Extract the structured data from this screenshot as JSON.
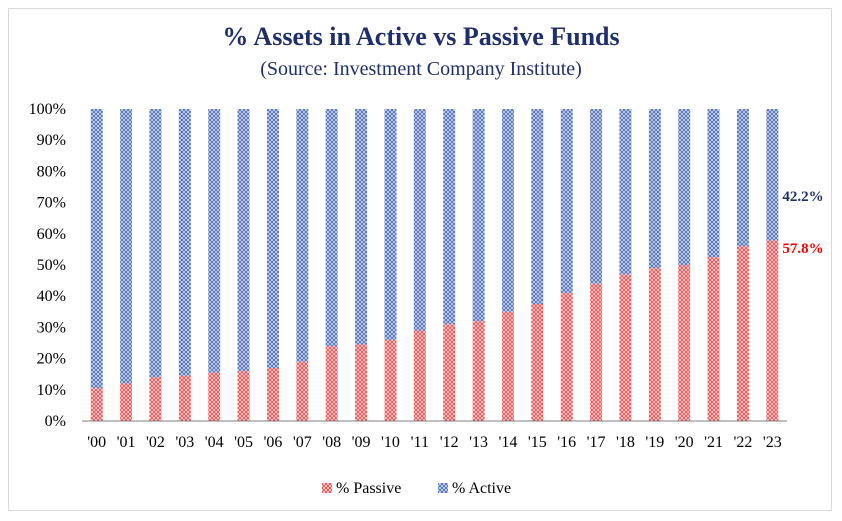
{
  "chart_data": {
    "type": "bar",
    "stacked": true,
    "title": "% Assets in Active vs Passive Funds",
    "subtitle": "(Source: Investment Company Institute)",
    "categories": [
      "'00",
      "'01",
      "'02",
      "'03",
      "'04",
      "'05",
      "'06",
      "'07",
      "'08",
      "'09",
      "'10",
      "'11",
      "'12",
      "'13",
      "'14",
      "'15",
      "'16",
      "'17",
      "'18",
      "'19",
      "'20",
      "'21",
      "'22",
      "'23"
    ],
    "series": [
      {
        "name": "% Passive",
        "color": "#e03c3c",
        "values": [
          10.5,
          12,
          14,
          14.5,
          15.5,
          16,
          17,
          19,
          24,
          24.5,
          26,
          29,
          31,
          32,
          35,
          37.5,
          41,
          44,
          47,
          49,
          50,
          52.5,
          56,
          57.8
        ]
      },
      {
        "name": "% Active",
        "color": "#3f61b0",
        "values": [
          89.5,
          88,
          86,
          85.5,
          84.5,
          84,
          83,
          81,
          76,
          75.5,
          74,
          71,
          69,
          68,
          65,
          62.5,
          59,
          56,
          53,
          51,
          50,
          47.5,
          44,
          42.2
        ]
      }
    ],
    "yticks": [
      "0%",
      "10%",
      "20%",
      "30%",
      "40%",
      "50%",
      "60%",
      "70%",
      "80%",
      "90%",
      "100%"
    ],
    "ylim": [
      0,
      100
    ],
    "grid": false,
    "legend": "bottom",
    "end_labels": {
      "active": {
        "text": "42.2%",
        "color": "#1f2f6e"
      },
      "passive": {
        "text": "57.8%",
        "color": "#ff0000"
      }
    }
  }
}
